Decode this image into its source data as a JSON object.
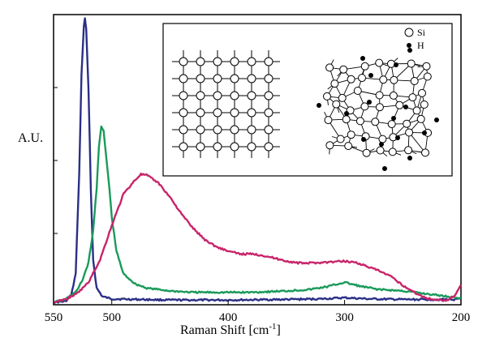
{
  "chart_data": {
    "type": "line",
    "title": "",
    "xlabel": "Raman Shift [cm",
    "xlabel_sup": "-1",
    "xlabel_close": "]",
    "ylabel": "A.U.",
    "xlim": [
      550,
      200
    ],
    "x_reversed": true,
    "ylim": [
      0,
      1
    ],
    "x_ticks": [
      550,
      500,
      400,
      300,
      200
    ],
    "x_tick_labels": [
      "550",
      "500",
      "400",
      "300",
      "200"
    ],
    "grid": false,
    "series": [
      {
        "color": "#2b2f86",
        "points": [
          [
            550,
            0.0
          ],
          [
            540,
            0.003
          ],
          [
            535,
            0.02
          ],
          [
            531,
            0.1
          ],
          [
            528,
            0.45
          ],
          [
            526,
            0.8
          ],
          [
            524,
            0.97
          ],
          [
            523,
            1.0
          ],
          [
            522,
            0.96
          ],
          [
            520,
            0.75
          ],
          [
            518,
            0.4
          ],
          [
            516,
            0.15
          ],
          [
            513,
            0.05
          ],
          [
            508,
            0.02
          ],
          [
            500,
            0.012
          ],
          [
            450,
            0.008
          ],
          [
            400,
            0.008
          ],
          [
            350,
            0.01
          ],
          [
            320,
            0.012
          ],
          [
            300,
            0.016
          ],
          [
            280,
            0.012
          ],
          [
            250,
            0.01
          ],
          [
            220,
            0.01
          ],
          [
            205,
            0.01
          ],
          [
            200,
            0.012
          ]
        ]
      },
      {
        "color": "#1a9a5a",
        "points": [
          [
            550,
            0.0
          ],
          [
            540,
            0.01
          ],
          [
            530,
            0.04
          ],
          [
            525,
            0.08
          ],
          [
            520,
            0.14
          ],
          [
            516,
            0.25
          ],
          [
            513,
            0.4
          ],
          [
            511,
            0.55
          ],
          [
            509,
            0.62
          ],
          [
            507,
            0.6
          ],
          [
            505,
            0.52
          ],
          [
            502,
            0.4
          ],
          [
            500,
            0.3
          ],
          [
            496,
            0.18
          ],
          [
            490,
            0.1
          ],
          [
            480,
            0.065
          ],
          [
            470,
            0.05
          ],
          [
            450,
            0.04
          ],
          [
            430,
            0.035
          ],
          [
            400,
            0.035
          ],
          [
            380,
            0.035
          ],
          [
            350,
            0.04
          ],
          [
            330,
            0.045
          ],
          [
            315,
            0.055
          ],
          [
            305,
            0.065
          ],
          [
            300,
            0.07
          ],
          [
            295,
            0.065
          ],
          [
            285,
            0.055
          ],
          [
            270,
            0.045
          ],
          [
            250,
            0.04
          ],
          [
            230,
            0.03
          ],
          [
            210,
            0.02
          ],
          [
            200,
            0.015
          ]
        ]
      },
      {
        "color": "#c8246a",
        "points": [
          [
            550,
            0.0
          ],
          [
            540,
            0.01
          ],
          [
            530,
            0.03
          ],
          [
            520,
            0.07
          ],
          [
            510,
            0.15
          ],
          [
            500,
            0.27
          ],
          [
            490,
            0.38
          ],
          [
            480,
            0.43
          ],
          [
            475,
            0.45
          ],
          [
            470,
            0.447
          ],
          [
            460,
            0.42
          ],
          [
            450,
            0.37
          ],
          [
            440,
            0.31
          ],
          [
            430,
            0.26
          ],
          [
            420,
            0.22
          ],
          [
            410,
            0.195
          ],
          [
            400,
            0.18
          ],
          [
            390,
            0.17
          ],
          [
            380,
            0.17
          ],
          [
            370,
            0.165
          ],
          [
            360,
            0.155
          ],
          [
            350,
            0.145
          ],
          [
            340,
            0.138
          ],
          [
            330,
            0.138
          ],
          [
            320,
            0.14
          ],
          [
            310,
            0.142
          ],
          [
            300,
            0.145
          ],
          [
            290,
            0.14
          ],
          [
            280,
            0.125
          ],
          [
            270,
            0.11
          ],
          [
            260,
            0.09
          ],
          [
            250,
            0.06
          ],
          [
            240,
            0.035
          ],
          [
            230,
            0.015
          ],
          [
            220,
            0.008
          ],
          [
            212,
            0.008
          ],
          [
            205,
            0.025
          ],
          [
            200,
            0.06
          ]
        ]
      }
    ],
    "inset": {
      "legend": [
        {
          "symbol": "open-circle",
          "label": "Si"
        },
        {
          "symbol": "filled-circle",
          "label": "H"
        }
      ]
    }
  }
}
